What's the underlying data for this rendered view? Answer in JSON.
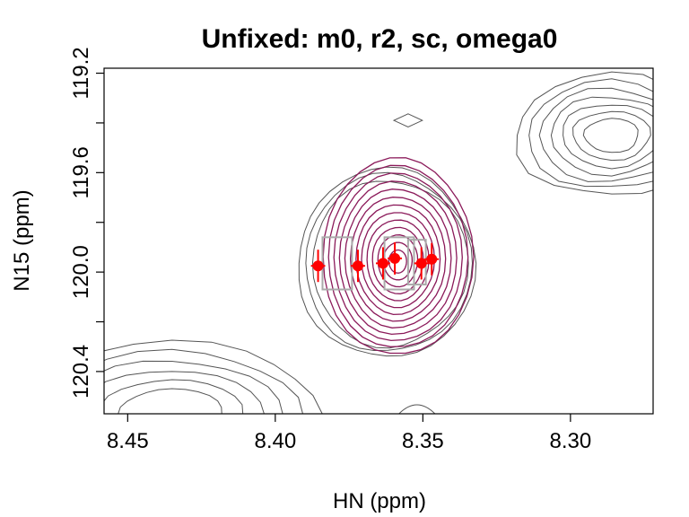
{
  "chart_data": {
    "type": "contour",
    "title": "Unfixed: m0, r2, sc, omega0",
    "xlabel": "HN (ppm)",
    "ylabel": "N15 (ppm)",
    "xlim": [
      8.458,
      8.272
    ],
    "ylim": [
      119.18,
      120.57
    ],
    "x_reversed": true,
    "y_reversed": true,
    "grid": false,
    "x_ticks": [
      {
        "value": 8.45,
        "label": "8.45"
      },
      {
        "value": 8.4,
        "label": "8.40"
      },
      {
        "value": 8.35,
        "label": "8.35"
      },
      {
        "value": 8.3,
        "label": "8.30"
      }
    ],
    "y_ticks": [
      {
        "value": 119.2,
        "label": "119.2"
      },
      {
        "value": 119.4,
        "label": ""
      },
      {
        "value": 119.6,
        "label": "119.6"
      },
      {
        "value": 119.8,
        "label": ""
      },
      {
        "value": 120.0,
        "label": "120.0"
      },
      {
        "value": 120.2,
        "label": ""
      },
      {
        "value": 120.4,
        "label": "120.4"
      }
    ],
    "colors": {
      "background_contours": "#555555",
      "fitted_contours": "#8b1a5a",
      "box_lines": "#aaaaaa",
      "points": "#ff0000"
    },
    "peak": {
      "x": 8.3585,
      "y": 119.96,
      "levels": 13,
      "rx_max": 0.0255,
      "ry_max": 0.395
    },
    "background_peak": {
      "x": 8.3605,
      "y": 119.965,
      "levels": 3,
      "rx_max": 0.03,
      "ry_max": 0.38
    },
    "upper_right_peak": {
      "x": 8.286,
      "y": 119.45,
      "levels": 7
    },
    "lower_left_peak": {
      "x": 8.435,
      "y": 120.57,
      "levels": 6
    },
    "diamond": {
      "x": 8.355,
      "y": 119.39,
      "dx": 0.003,
      "dy": 0.03
    },
    "small_arc": {
      "x": 8.352,
      "y": 120.57
    },
    "boxes": [
      {
        "x0": 8.384,
        "x1": 8.374,
        "y0": 119.86,
        "y1": 120.07
      },
      {
        "x0": 8.363,
        "x1": 8.353,
        "y0": 119.86,
        "y1": 120.07
      },
      {
        "x0": 8.355,
        "x1": 8.349,
        "y0": 119.87,
        "y1": 120.05
      }
    ],
    "points": [
      {
        "x": 8.3855,
        "y": 119.975,
        "err_x": 0.0012,
        "err_y": 0.065
      },
      {
        "x": 8.372,
        "y": 119.975,
        "err_x": 0.0012,
        "err_y": 0.065
      },
      {
        "x": 8.3635,
        "y": 119.965,
        "err_x": 0.0012,
        "err_y": 0.065
      },
      {
        "x": 8.3595,
        "y": 119.945,
        "err_x": 0.0012,
        "err_y": 0.065
      },
      {
        "x": 8.3505,
        "y": 119.965,
        "err_x": 0.0012,
        "err_y": 0.065
      },
      {
        "x": 8.347,
        "y": 119.948,
        "err_x": 0.0012,
        "err_y": 0.065
      }
    ]
  }
}
